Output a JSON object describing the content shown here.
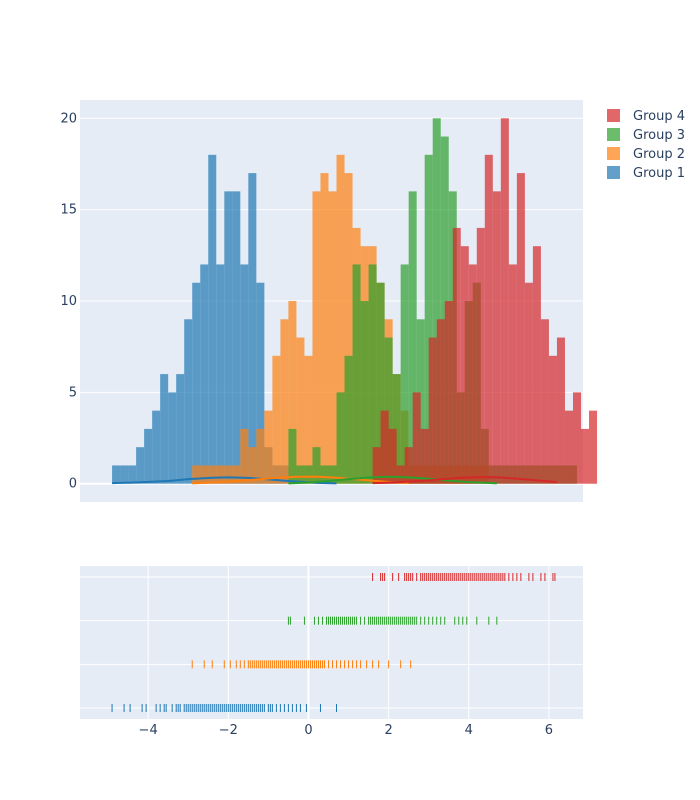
{
  "chart_data": {
    "type": "distplot",
    "layout": {
      "barmode": "overlay",
      "grid": true,
      "legend_position": "top-right",
      "hist_opacity": 0.7
    },
    "histogram": {
      "xlim": [
        -5.7,
        6.85
      ],
      "ylim": [
        -1.0,
        21.0
      ],
      "y_ticks": [
        0,
        5,
        10,
        15,
        20
      ],
      "bin_size": 0.2
    },
    "rug": {
      "x_ticks": [
        -4,
        -2,
        0,
        2,
        4,
        6
      ],
      "x_tick_labels": [
        "−4",
        "−2",
        "0",
        "2",
        "4",
        "6"
      ]
    },
    "legend": [
      "Group 4",
      "Group 3",
      "Group 2",
      "Group 1"
    ],
    "series": [
      {
        "name": "Group 1",
        "color": "#1f77b4",
        "bin_start": -4.9,
        "counts": [
          1,
          1,
          1,
          2,
          3,
          4,
          6,
          5,
          6,
          9,
          11,
          12,
          18,
          12,
          16,
          16,
          12,
          17,
          11,
          2,
          1,
          1,
          0,
          0,
          0,
          0,
          0,
          0
        ],
        "kde": [
          [
            -4.9,
            0.03
          ],
          [
            -4.2,
            0.08
          ],
          [
            -3.5,
            0.15
          ],
          [
            -3.0,
            0.25
          ],
          [
            -2.4,
            0.33
          ],
          [
            -2.0,
            0.35
          ],
          [
            -1.5,
            0.32
          ],
          [
            -1.0,
            0.24
          ],
          [
            -0.5,
            0.15
          ],
          [
            0.0,
            0.08
          ],
          [
            0.3,
            0.04
          ],
          [
            0.7,
            0.02
          ]
        ],
        "rug_x": [
          -4.9,
          -4.6,
          -4.45,
          -4.15,
          -4.05,
          -3.8,
          -3.7,
          -3.6,
          -3.55,
          -3.4,
          -3.3,
          -3.25,
          -3.2,
          -3.1,
          -3.05,
          -3.0,
          -2.95,
          -2.9,
          -2.85,
          -2.8,
          -2.75,
          -2.7,
          -2.65,
          -2.6,
          -2.55,
          -2.5,
          -2.45,
          -2.4,
          -2.35,
          -2.3,
          -2.25,
          -2.2,
          -2.15,
          -2.1,
          -2.05,
          -2.0,
          -1.95,
          -1.9,
          -1.85,
          -1.8,
          -1.75,
          -1.7,
          -1.65,
          -1.6,
          -1.55,
          -1.5,
          -1.45,
          -1.4,
          -1.35,
          -1.3,
          -1.25,
          -1.2,
          -1.15,
          -1.1,
          -1.0,
          -0.95,
          -0.9,
          -0.8,
          -0.7,
          -0.6,
          -0.5,
          -0.4,
          -0.3,
          -0.2,
          -0.05,
          0.3,
          0.7
        ]
      },
      {
        "name": "Group 2",
        "color": "#ff7f0e",
        "bin_start": -2.9,
        "counts": [
          1,
          1,
          1,
          1,
          1,
          1,
          3,
          2,
          3,
          4,
          7,
          9,
          10,
          8,
          7,
          16,
          17,
          16,
          18,
          17,
          14,
          13,
          13,
          11,
          9,
          6,
          4,
          1,
          1,
          1,
          1,
          1,
          1,
          1,
          1,
          1,
          1
        ],
        "kde": [
          [
            -2.9,
            0.02
          ],
          [
            -2.3,
            0.08
          ],
          [
            -1.8,
            0.15
          ],
          [
            -1.3,
            0.23
          ],
          [
            -0.8,
            0.32
          ],
          [
            -0.3,
            0.38
          ],
          [
            0.2,
            0.39
          ],
          [
            0.7,
            0.33
          ],
          [
            1.2,
            0.24
          ],
          [
            1.7,
            0.15
          ],
          [
            2.1,
            0.08
          ],
          [
            2.5,
            0.04
          ]
        ],
        "rug_x": [
          -2.9,
          -2.6,
          -2.4,
          -2.1,
          -1.95,
          -1.8,
          -1.7,
          -1.6,
          -1.5,
          -1.45,
          -1.4,
          -1.35,
          -1.3,
          -1.25,
          -1.2,
          -1.15,
          -1.1,
          -1.05,
          -1.0,
          -0.95,
          -0.9,
          -0.85,
          -0.8,
          -0.75,
          -0.7,
          -0.65,
          -0.6,
          -0.55,
          -0.5,
          -0.45,
          -0.4,
          -0.35,
          -0.3,
          -0.25,
          -0.2,
          -0.15,
          -0.1,
          -0.05,
          0.0,
          0.05,
          0.1,
          0.15,
          0.2,
          0.25,
          0.3,
          0.35,
          0.4,
          0.5,
          0.6,
          0.7,
          0.8,
          0.9,
          1.0,
          1.1,
          1.2,
          1.3,
          1.45,
          1.6,
          1.75,
          2.0,
          2.3,
          2.55
        ]
      },
      {
        "name": "Group 3",
        "color": "#2ca02c",
        "bin_start": -0.5,
        "counts": [
          3,
          1,
          1,
          2,
          1,
          1,
          5,
          7,
          12,
          10,
          12,
          11,
          8,
          6,
          12,
          16,
          9,
          18,
          20,
          19,
          16,
          5,
          10,
          11,
          3,
          1,
          1,
          1,
          1,
          1,
          1,
          1,
          1,
          1,
          1,
          1
        ],
        "kde": [
          [
            -0.5,
            0.02
          ],
          [
            0.0,
            0.07
          ],
          [
            0.5,
            0.15
          ],
          [
            1.0,
            0.25
          ],
          [
            1.5,
            0.34
          ],
          [
            2.0,
            0.38
          ],
          [
            2.5,
            0.35
          ],
          [
            3.0,
            0.27
          ],
          [
            3.5,
            0.17
          ],
          [
            4.0,
            0.09
          ],
          [
            4.4,
            0.05
          ],
          [
            4.7,
            0.02
          ]
        ],
        "rug_x": [
          -0.5,
          -0.45,
          -0.1,
          0.15,
          0.25,
          0.35,
          0.45,
          0.5,
          0.55,
          0.6,
          0.65,
          0.7,
          0.75,
          0.8,
          0.85,
          0.9,
          0.95,
          1.0,
          1.05,
          1.1,
          1.15,
          1.2,
          1.3,
          1.4,
          1.5,
          1.55,
          1.6,
          1.65,
          1.7,
          1.75,
          1.8,
          1.85,
          1.9,
          1.95,
          2.0,
          2.05,
          2.1,
          2.15,
          2.2,
          2.25,
          2.3,
          2.35,
          2.4,
          2.45,
          2.5,
          2.55,
          2.6,
          2.65,
          2.7,
          2.8,
          2.9,
          3.0,
          3.1,
          3.2,
          3.3,
          3.4,
          3.65,
          3.75,
          3.85,
          3.95,
          4.2,
          4.5,
          4.7
        ]
      },
      {
        "name": "Group 4",
        "color": "#d62728",
        "bin_start": 1.6,
        "counts": [
          2,
          4,
          3,
          1,
          2,
          5,
          3,
          8,
          9,
          10,
          14,
          13,
          12,
          14,
          18,
          16,
          20,
          12,
          17,
          11,
          13,
          9,
          7,
          8,
          4,
          5,
          3,
          4
        ],
        "kde": [
          [
            1.6,
            0.03
          ],
          [
            2.2,
            0.08
          ],
          [
            2.8,
            0.15
          ],
          [
            3.3,
            0.24
          ],
          [
            3.8,
            0.33
          ],
          [
            4.3,
            0.37
          ],
          [
            4.8,
            0.34
          ],
          [
            5.3,
            0.26
          ],
          [
            5.8,
            0.16
          ],
          [
            6.2,
            0.09
          ]
        ],
        "rug_x": [
          1.6,
          1.8,
          1.85,
          1.9,
          2.1,
          2.25,
          2.4,
          2.45,
          2.5,
          2.55,
          2.6,
          2.7,
          2.8,
          2.85,
          2.9,
          2.95,
          3.0,
          3.05,
          3.1,
          3.15,
          3.2,
          3.25,
          3.3,
          3.35,
          3.4,
          3.45,
          3.5,
          3.55,
          3.6,
          3.65,
          3.7,
          3.75,
          3.8,
          3.85,
          3.9,
          3.95,
          4.0,
          4.05,
          4.1,
          4.15,
          4.2,
          4.25,
          4.3,
          4.35,
          4.4,
          4.45,
          4.5,
          4.55,
          4.6,
          4.65,
          4.7,
          4.75,
          4.8,
          4.85,
          4.9,
          5.0,
          5.1,
          5.2,
          5.3,
          5.5,
          5.6,
          5.8,
          5.9,
          6.1,
          6.15
        ]
      }
    ]
  }
}
